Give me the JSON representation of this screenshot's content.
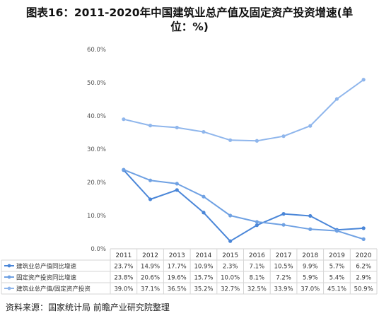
{
  "title_line1": "图表16：2011-2020年中国建筑业总产值及固定资产投资增速(单",
  "title_line2": "位：%)",
  "source": "资料来源：国家统计局 前瞻产业研究院整理",
  "chart_data": {
    "type": "line",
    "categories": [
      "2011",
      "2012",
      "2013",
      "2014",
      "2015",
      "2016",
      "2017",
      "2018",
      "2019",
      "2020"
    ],
    "ylim": [
      0,
      60
    ],
    "yticks": [
      "0.0%",
      "10.0%",
      "20.0%",
      "30.0%",
      "40.0%",
      "50.0%",
      "60.0%"
    ],
    "grid": false,
    "legend": "table-below",
    "series": [
      {
        "name": "建筑业总产值同比增速",
        "color": "#4a86d8",
        "values": [
          23.7,
          14.9,
          17.7,
          10.9,
          2.3,
          7.1,
          10.5,
          9.9,
          5.7,
          6.2
        ],
        "labels": [
          "23.7%",
          "14.9%",
          "17.7%",
          "10.9%",
          "2.3%",
          "7.1%",
          "10.5%",
          "9.9%",
          "5.7%",
          "6.2%"
        ]
      },
      {
        "name": "固定资产投资同比增速",
        "color": "#6fa1e3",
        "values": [
          23.8,
          20.6,
          19.6,
          15.7,
          10.0,
          8.1,
          7.2,
          5.9,
          5.4,
          2.9
        ],
        "labels": [
          "23.8%",
          "20.6%",
          "19.6%",
          "15.7%",
          "10.0%",
          "8.1%",
          "7.2%",
          "5.9%",
          "5.4%",
          "2.9%"
        ]
      },
      {
        "name": "建筑业总产值/固定资产投资",
        "color": "#8fb6ec",
        "values": [
          39.0,
          37.1,
          36.5,
          35.2,
          32.7,
          32.5,
          33.9,
          37.0,
          45.1,
          50.9
        ],
        "labels": [
          "39.0%",
          "37.1%",
          "36.5%",
          "35.2%",
          "32.7%",
          "32.5%",
          "33.9%",
          "37.0%",
          "45.1%",
          "50.9%"
        ]
      }
    ]
  }
}
